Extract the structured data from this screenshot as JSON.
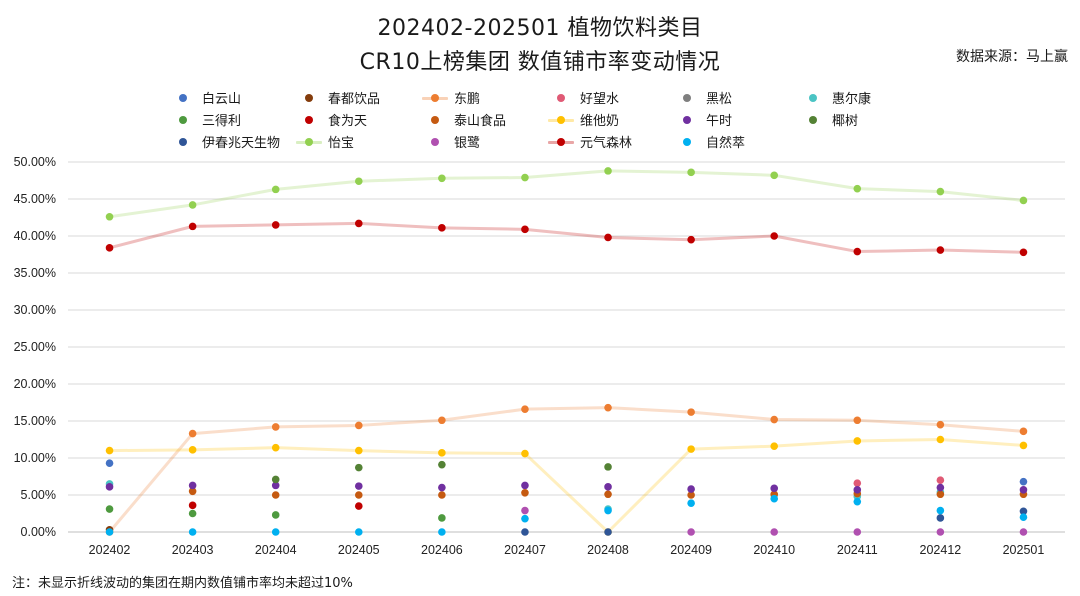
{
  "title_line1": "202402-202501 植物饮料类目",
  "title_line2": "CR10上榜集团 数值铺市率变动情况",
  "source": "数据来源：马上赢",
  "note": "注：未显示折线波动的集团在期内数值铺市率均未超过10%",
  "chart_data": {
    "type": "line",
    "categories": [
      "202402",
      "202403",
      "202404",
      "202405",
      "202406",
      "202407",
      "202408",
      "202409",
      "202410",
      "202411",
      "202412",
      "202501"
    ],
    "ylim": [
      0,
      50
    ],
    "yticks": [
      "0.00%",
      "5.00%",
      "10.00%",
      "15.00%",
      "20.00%",
      "25.00%",
      "30.00%",
      "35.00%",
      "40.00%",
      "45.00%",
      "50.00%"
    ],
    "grid": true,
    "legend_position": "top",
    "series": [
      {
        "name": "白云山",
        "color": "#4472c4",
        "line": false,
        "values": [
          9.3,
          null,
          null,
          null,
          null,
          null,
          null,
          null,
          null,
          null,
          null,
          6.8
        ]
      },
      {
        "name": "春都饮品",
        "color": "#843c0c",
        "line": false,
        "values": [
          0.3,
          null,
          null,
          null,
          null,
          null,
          null,
          null,
          null,
          null,
          null,
          null
        ]
      },
      {
        "name": "东鹏",
        "color": "#ed7d31",
        "line": true,
        "values": [
          0,
          13.3,
          14.2,
          14.4,
          15.1,
          16.6,
          16.8,
          16.2,
          15.2,
          15.1,
          14.5,
          13.6
        ]
      },
      {
        "name": "好望水",
        "color": "#e05a75",
        "line": false,
        "values": [
          null,
          null,
          null,
          null,
          null,
          null,
          null,
          null,
          null,
          6.6,
          7.0,
          null
        ]
      },
      {
        "name": "黑松",
        "color": "#7f7f7f",
        "line": false,
        "values": [
          null,
          null,
          null,
          null,
          null,
          null,
          null,
          null,
          null,
          null,
          null,
          null
        ]
      },
      {
        "name": "惠尔康",
        "color": "#4bc4c4",
        "line": false,
        "values": [
          6.5,
          null,
          null,
          null,
          null,
          null,
          3.1,
          null,
          5.0,
          4.8,
          5.4,
          null
        ]
      },
      {
        "name": "三得利",
        "color": "#4e9a3f",
        "line": false,
        "values": [
          3.1,
          2.5,
          2.3,
          null,
          1.9,
          null,
          null,
          null,
          null,
          null,
          null,
          null
        ]
      },
      {
        "name": "食为天",
        "color": "#c00000",
        "line": false,
        "values": [
          null,
          3.6,
          null,
          3.5,
          null,
          null,
          null,
          null,
          null,
          null,
          null,
          null
        ]
      },
      {
        "name": "泰山食品",
        "color": "#c55a11",
        "line": false,
        "values": [
          null,
          5.5,
          5.0,
          5.0,
          5.0,
          5.3,
          5.1,
          5.0,
          5.1,
          5.2,
          5.1,
          5.1
        ]
      },
      {
        "name": "维他奶",
        "color": "#ffc000",
        "line": true,
        "values": [
          11.0,
          11.1,
          11.4,
          11.0,
          10.7,
          10.6,
          0,
          11.2,
          11.6,
          12.3,
          12.5,
          11.7
        ]
      },
      {
        "name": "午时",
        "color": "#7030a0",
        "line": false,
        "values": [
          6.1,
          6.3,
          6.3,
          6.2,
          6.0,
          6.3,
          6.1,
          5.8,
          5.9,
          5.7,
          6.0,
          5.7
        ]
      },
      {
        "name": "椰树",
        "color": "#548235",
        "line": false,
        "values": [
          null,
          null,
          7.1,
          8.7,
          9.1,
          null,
          8.8,
          null,
          null,
          null,
          null,
          null
        ]
      },
      {
        "name": "伊春兆天生物",
        "color": "#2f5597",
        "line": false,
        "values": [
          null,
          null,
          null,
          null,
          null,
          0,
          0,
          null,
          null,
          null,
          1.9,
          2.8
        ]
      },
      {
        "name": "怡宝",
        "color": "#92d050",
        "line": true,
        "values": [
          42.6,
          44.2,
          46.3,
          47.4,
          47.8,
          47.9,
          48.8,
          48.6,
          48.2,
          46.4,
          46.0,
          44.8
        ]
      },
      {
        "name": "银鹭",
        "color": "#b050b0",
        "line": false,
        "values": [
          null,
          null,
          null,
          null,
          null,
          2.9,
          null,
          0,
          0,
          0,
          0,
          0
        ]
      },
      {
        "name": "元气森林",
        "color": "#c00000",
        "line": true,
        "values": [
          38.4,
          41.3,
          41.5,
          41.7,
          41.1,
          40.9,
          39.8,
          39.5,
          40.0,
          37.9,
          38.1,
          37.8
        ]
      },
      {
        "name": "自然萃",
        "color": "#00b0f0",
        "line": false,
        "values": [
          0,
          0,
          0,
          0,
          0,
          1.8,
          2.9,
          3.9,
          4.5,
          4.1,
          2.9,
          2.0
        ]
      }
    ]
  }
}
